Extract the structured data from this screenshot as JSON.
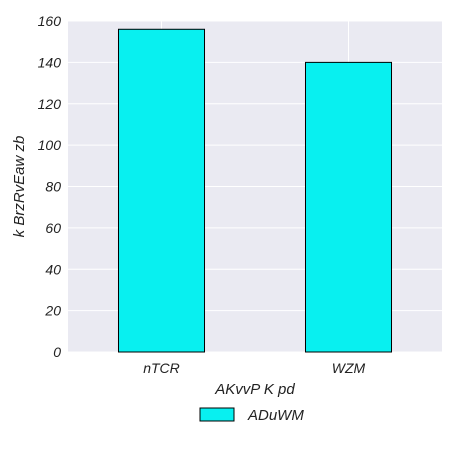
{
  "chart_data": {
    "type": "bar",
    "categories": [
      "nTCR",
      "WZM"
    ],
    "series": [
      {
        "name": "ADuWM",
        "values": [
          156,
          140
        ],
        "color": "#08f0f0"
      }
    ],
    "xlabel": "AKvvP  K pd",
    "ylabel": "k BrzRvEaw  zb",
    "ylim": [
      0,
      160
    ],
    "yticks": [
      0,
      20,
      40,
      60,
      80,
      100,
      120,
      140,
      160
    ],
    "grid": true,
    "legend_position": "bottom-center",
    "plot_background": "#eaeaf2",
    "grid_color": "#ffffff"
  }
}
